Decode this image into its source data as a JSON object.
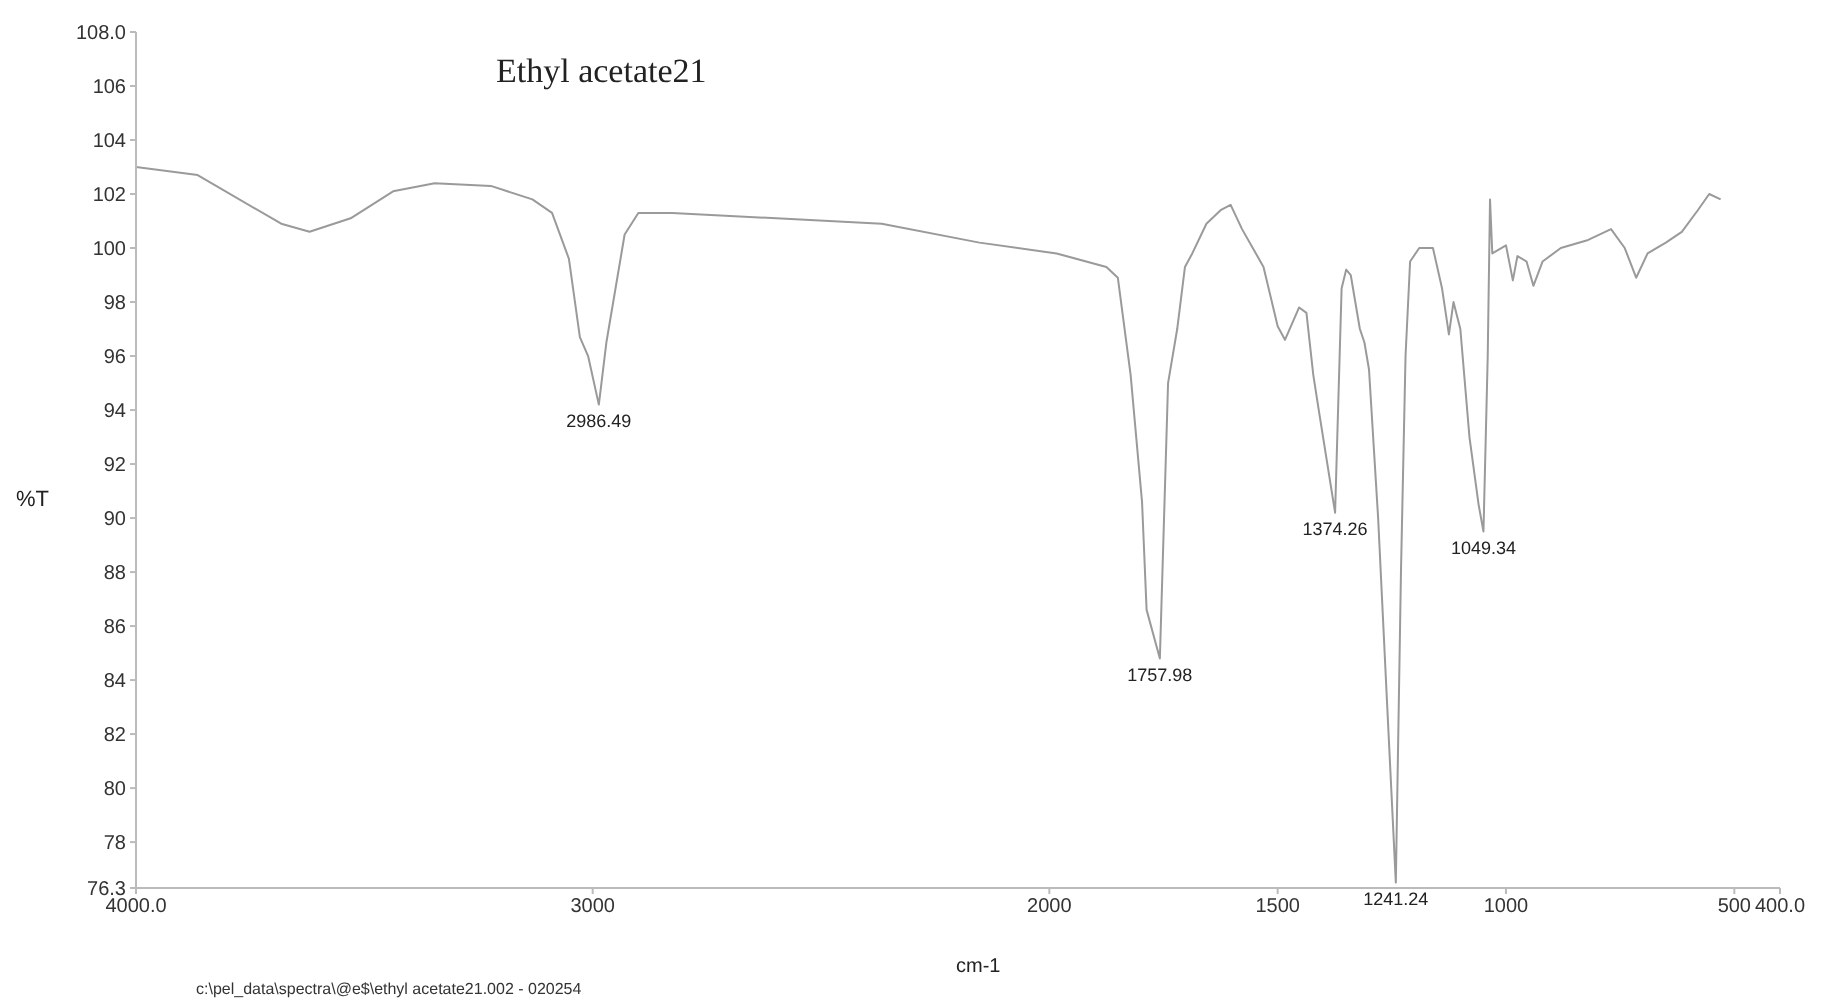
{
  "chart_data": {
    "type": "line",
    "title": "Ethyl acetate21",
    "xlabel": "cm-1",
    "ylabel": "%T",
    "x": [
      4000,
      3865,
      3682,
      3620,
      3530,
      3437,
      3346,
      3223,
      3132,
      3089,
      3052,
      3028,
      3010,
      2986.49,
      2970,
      2950,
      2930,
      2900,
      2826,
      2367,
      2153,
      1984,
      1875,
      1850,
      1822,
      1797,
      1787,
      1757.98,
      1740,
      1720,
      1703,
      1687,
      1656,
      1625,
      1603,
      1578,
      1531,
      1500,
      1484,
      1453,
      1437,
      1422,
      1410,
      1374.26,
      1360,
      1350,
      1340,
      1320,
      1310,
      1300,
      1280,
      1260,
      1241.24,
      1230,
      1220,
      1210,
      1190,
      1160,
      1140,
      1125,
      1115,
      1100,
      1080,
      1060,
      1049.34,
      1040,
      1035,
      1030,
      1000,
      985,
      975,
      955,
      940,
      920,
      880,
      820,
      770,
      740,
      715,
      690,
      650,
      615,
      580,
      555,
      530
    ],
    "series": [
      {
        "color": "#9a9a9a",
        "values": [
          103.0,
          102.7,
          100.9,
          100.6,
          101.1,
          102.1,
          102.4,
          102.3,
          101.8,
          101.3,
          99.6,
          96.7,
          96.0,
          94.2,
          96.5,
          98.5,
          100.5,
          101.3,
          101.3,
          100.9,
          100.2,
          99.8,
          99.3,
          98.9,
          95.3,
          90.6,
          86.6,
          84.8,
          95.0,
          97.0,
          99.3,
          99.8,
          100.9,
          101.4,
          101.6,
          100.7,
          99.3,
          97.1,
          96.6,
          97.8,
          97.6,
          95.3,
          94.0,
          90.2,
          98.5,
          99.2,
          99.0,
          97.0,
          96.5,
          95.5,
          90.0,
          83.0,
          76.5,
          88.0,
          96.0,
          99.5,
          100.0,
          100.0,
          98.5,
          96.8,
          98.0,
          97.0,
          93.0,
          90.5,
          89.5,
          96.0,
          101.8,
          99.8,
          100.1,
          98.8,
          99.7,
          99.5,
          98.6,
          99.5,
          100.0,
          100.3,
          100.7,
          100.0,
          98.9,
          99.8,
          100.2,
          100.6,
          101.4,
          102.0,
          101.8
        ]
      }
    ],
    "xlim": [
      4000,
      400
    ],
    "xticks": [
      {
        "value": 4000,
        "label": "4000.0"
      },
      3000,
      2000,
      1500,
      1000,
      500,
      {
        "value": 400,
        "label": "400.0"
      }
    ],
    "ylim": [
      76.3,
      108
    ],
    "yticks": [
      76.3,
      78,
      80,
      82,
      84,
      86,
      88,
      90,
      92,
      94,
      96,
      98,
      100,
      102,
      104,
      106,
      {
        "value": 108,
        "label": "108.0"
      }
    ],
    "annotations": [
      {
        "text": "2986.49",
        "x": 2986.49,
        "y": 94.2
      },
      {
        "text": "1757.98",
        "x": 1757.98,
        "y": 84.8
      },
      {
        "text": "1374.26",
        "x": 1374.26,
        "y": 90.2
      },
      {
        "text": "1241.24",
        "x": 1241.24,
        "y": 76.5
      },
      {
        "text": "1049.34",
        "x": 1049.34,
        "y": 89.5
      },
      "c:\\pel_data\\spectra\\@e$\\ethyl acetate21.002 - 020254"
    ],
    "grid": false,
    "marker": "none",
    "line_style": "solid"
  }
}
